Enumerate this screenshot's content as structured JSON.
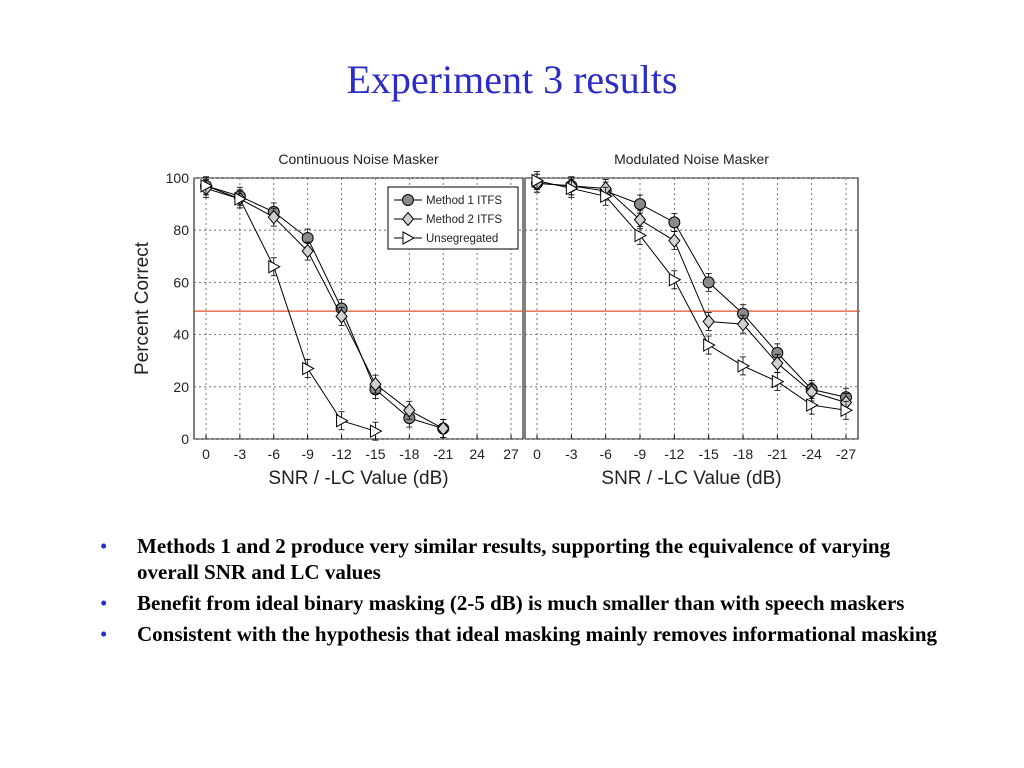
{
  "slide": {
    "title": "Experiment 3 results",
    "bullets": [
      "Methods 1 and 2 produce very similar results, supporting the equivalence of varying overall SNR and LC values",
      "Benefit from ideal binary masking (2-5 dB) is much smaller than with speech maskers",
      "Consistent with the hypothesis that ideal masking mainly removes informational masking"
    ],
    "bullet_symbol": "•",
    "colors": {
      "title": "#2c2cc8",
      "bullet": "#2c2cc8",
      "reference_line": "#e0502a"
    }
  },
  "chart_data": [
    {
      "type": "line",
      "title": "Continuous Noise Masker",
      "ylabel": "Percent Correct",
      "xlabel": "SNR /  -LC Value (dB)",
      "x_ticks": [
        "0",
        "-3",
        "-6",
        "-9",
        "-12",
        "-15",
        "-18",
        "-21",
        "24",
        "27"
      ],
      "y_ticks": [
        "0",
        "20",
        "40",
        "60",
        "80",
        "100"
      ],
      "ylim": [
        0,
        100
      ],
      "grid": true,
      "legend": "top-right",
      "reference_line_y": 49,
      "series": [
        {
          "name": "Method 1 ITFS",
          "marker": "circle",
          "x_index": [
            0,
            1,
            2,
            3,
            4,
            5,
            6,
            7
          ],
          "values": [
            97,
            93,
            87,
            77,
            50,
            19,
            8,
            4
          ]
        },
        {
          "name": "Method 2 ITFS",
          "marker": "diamond",
          "x_index": [
            0,
            1,
            2,
            3,
            4,
            5,
            6,
            7
          ],
          "values": [
            96,
            92,
            85,
            72,
            47,
            21,
            11,
            4
          ]
        },
        {
          "name": "Unsegregated",
          "marker": "triangle-right",
          "x_index": [
            0,
            1,
            2,
            3,
            4,
            5
          ],
          "values": [
            97,
            92,
            66,
            27,
            7,
            3
          ]
        }
      ]
    },
    {
      "type": "line",
      "title": "Modulated Noise Masker",
      "xlabel": "SNR /  -LC Value (dB)",
      "x_ticks": [
        "0",
        "-3",
        "-6",
        "-9",
        "-12",
        "-15",
        "-18",
        "-21",
        "-24",
        "-27"
      ],
      "ylim": [
        0,
        100
      ],
      "grid": true,
      "reference_line_y": 49,
      "series": [
        {
          "name": "Method 1 ITFS",
          "marker": "circle",
          "x_index": [
            0,
            1,
            2,
            3,
            4,
            5,
            6,
            7,
            8,
            9
          ],
          "values": [
            98,
            97,
            95,
            90,
            83,
            60,
            48,
            33,
            19,
            16
          ]
        },
        {
          "name": "Method 2 ITFS",
          "marker": "diamond",
          "x_index": [
            0,
            1,
            2,
            3,
            4,
            5,
            6,
            7,
            8,
            9
          ],
          "values": [
            98,
            97,
            96,
            84,
            76,
            45,
            44,
            29,
            18,
            14
          ]
        },
        {
          "name": "Unsegregated",
          "marker": "triangle-right",
          "x_index": [
            0,
            1,
            2,
            3,
            4,
            5,
            6,
            7,
            8,
            9
          ],
          "values": [
            99,
            96,
            93,
            78,
            61,
            36,
            28,
            22,
            13,
            11
          ]
        }
      ]
    }
  ]
}
